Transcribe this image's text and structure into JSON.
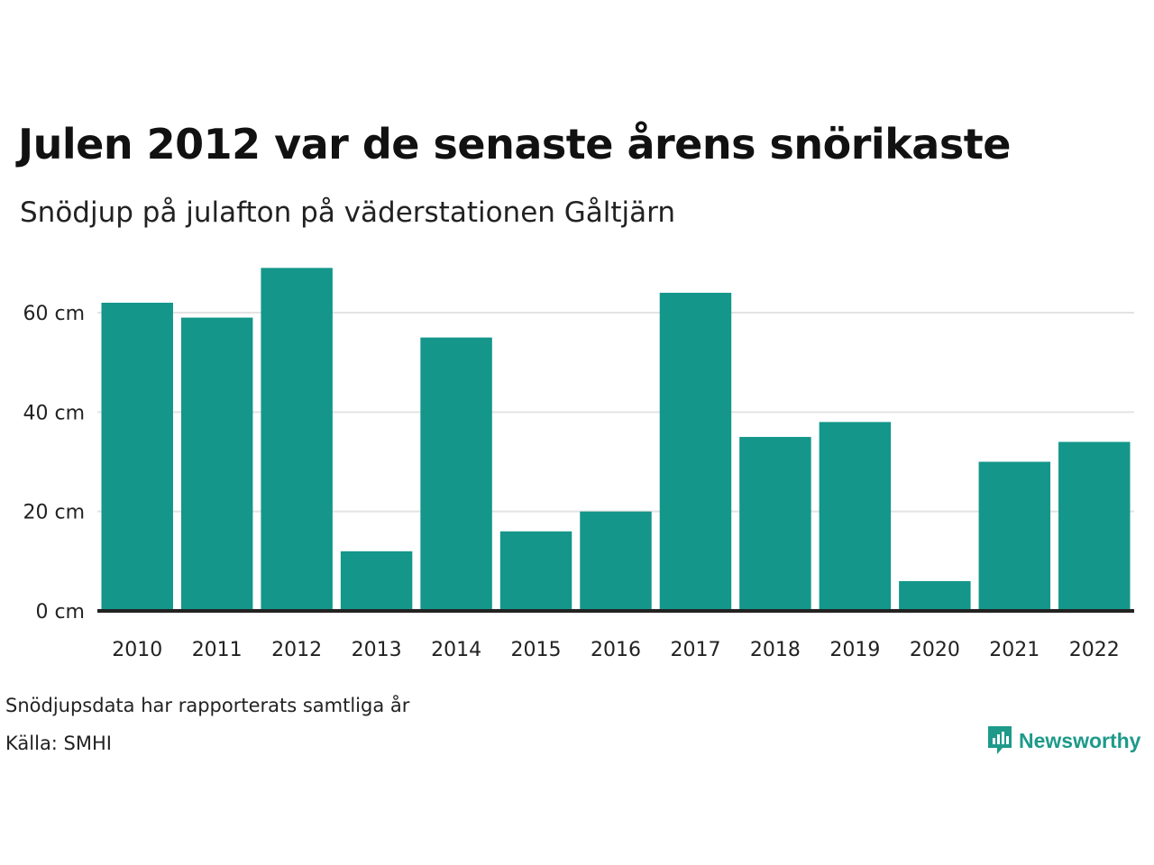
{
  "title": "Julen 2012 var de senaste årens snörikaste",
  "subtitle": "Snödjup på julafton på väderstationen Gåltjärn",
  "note": "Snödjupsdata har rapporterats samtliga år",
  "source": "Källa: SMHI",
  "brand": {
    "name": "Newsworthy",
    "color": "#1d9a8a",
    "icon": "newsworthy-logo-icon"
  },
  "colors": {
    "bar": "#14968a",
    "grid": "#e3e3e3",
    "baseline": "#222222"
  },
  "chart_data": {
    "type": "bar",
    "categories": [
      "2010",
      "2011",
      "2012",
      "2013",
      "2014",
      "2015",
      "2016",
      "2017",
      "2018",
      "2019",
      "2020",
      "2021",
      "2022"
    ],
    "values": [
      62,
      59,
      69,
      12,
      55,
      16,
      20,
      64,
      35,
      38,
      6,
      30,
      34
    ],
    "ylim": [
      0,
      72
    ],
    "yticks": [
      0,
      20,
      40,
      60
    ],
    "ytick_labels": [
      "0 cm",
      "20 cm",
      "40 cm",
      "60 cm"
    ],
    "grid": true,
    "legend": "none"
  }
}
